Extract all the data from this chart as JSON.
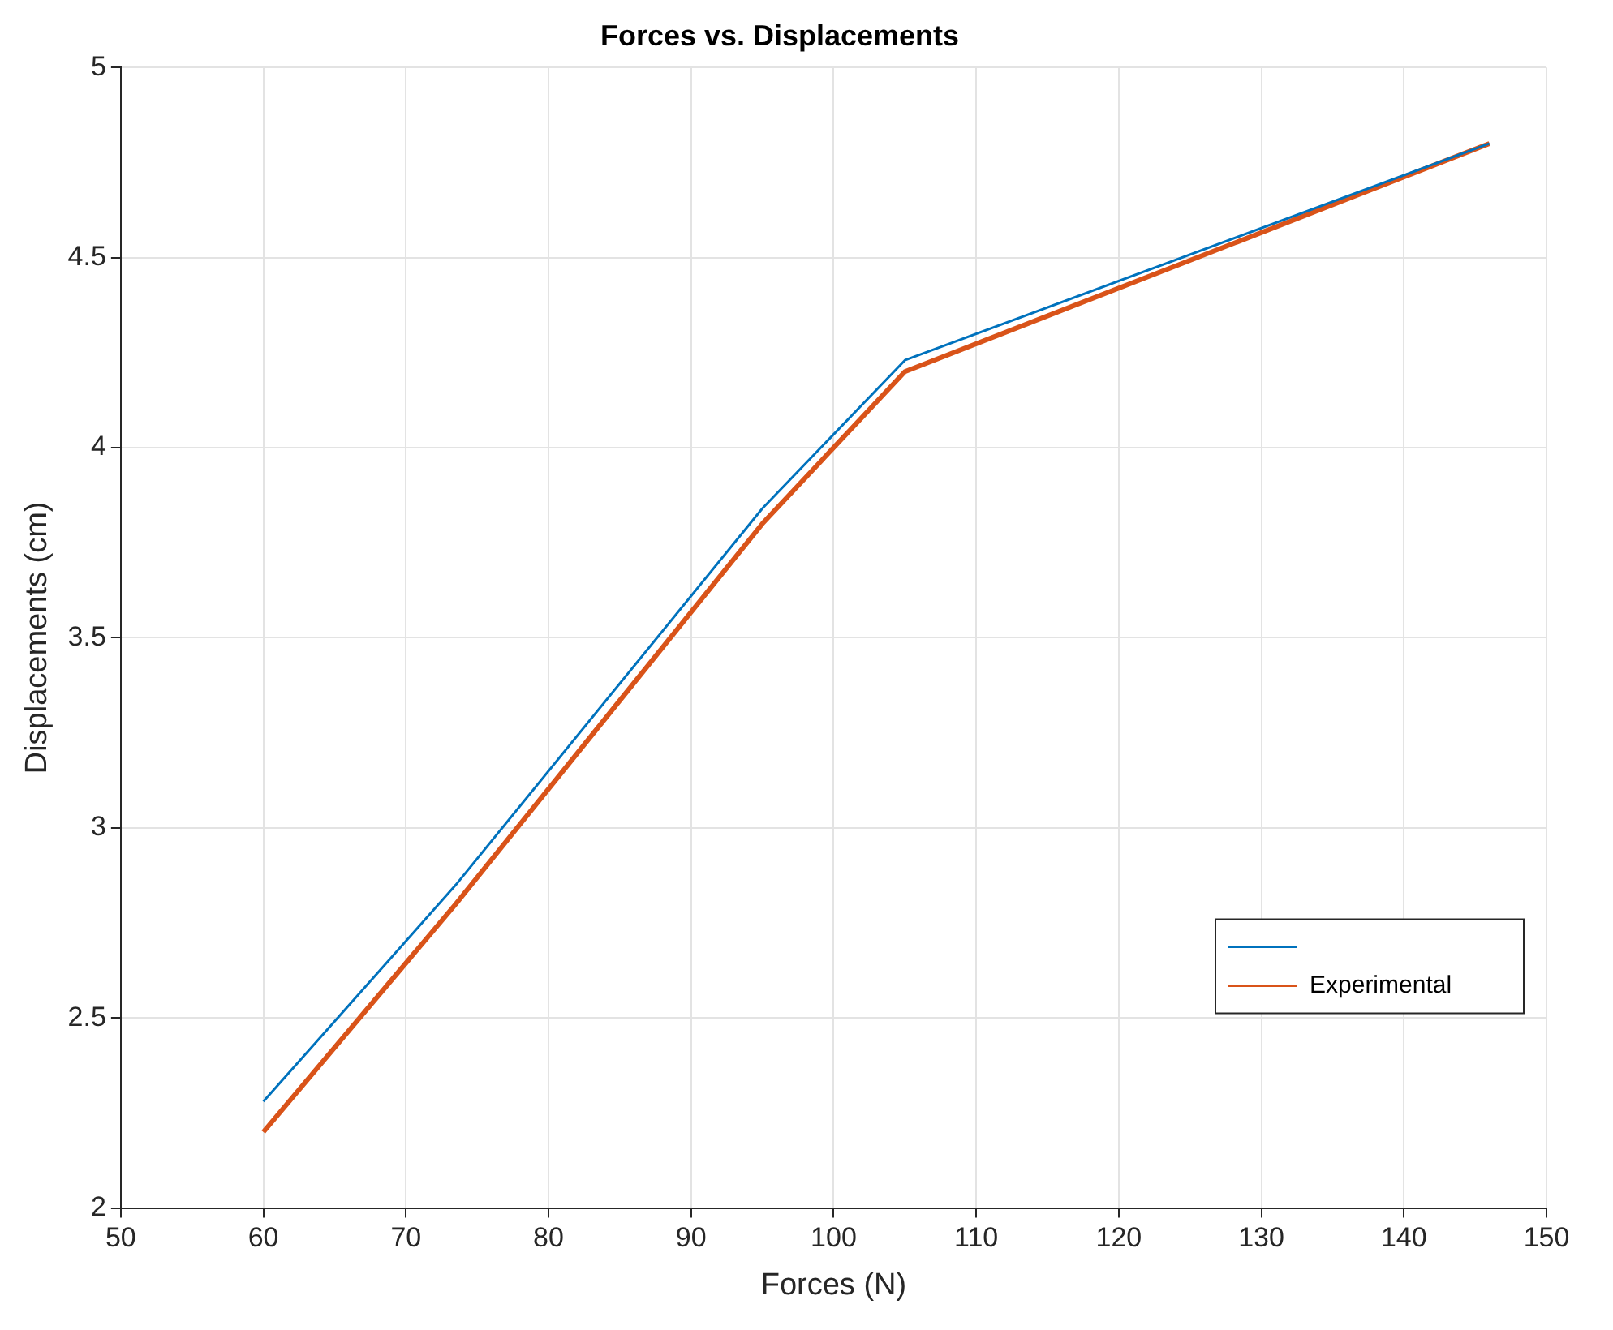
{
  "chart_data": {
    "type": "line",
    "title": "Forces vs. Displacements",
    "xlabel": "Forces (N)",
    "ylabel": "Displacements (cm)",
    "series": [
      {
        "color": "#0072bd",
        "x": [
          60,
          73.5,
          95,
          105,
          146
        ],
        "values": [
          2.28,
          2.85,
          3.84,
          4.23,
          4.8
        ]
      },
      {
        "name": "Experimental",
        "color": "#d95319",
        "x": [
          60,
          73.5,
          95,
          105,
          146
        ],
        "values": [
          2.2,
          2.8,
          3.8,
          4.2,
          4.8
        ]
      }
    ],
    "xlim": [
      50,
      150
    ],
    "xticks": [
      50,
      60,
      70,
      80,
      90,
      100,
      110,
      120,
      130,
      140,
      150
    ],
    "ylim": [
      2,
      5
    ],
    "yticks": [
      2,
      2.5,
      3,
      3.5,
      4,
      4.5,
      5
    ],
    "grid": true,
    "legend": "bottom right",
    "marker": "none",
    "line_style": "solid"
  }
}
